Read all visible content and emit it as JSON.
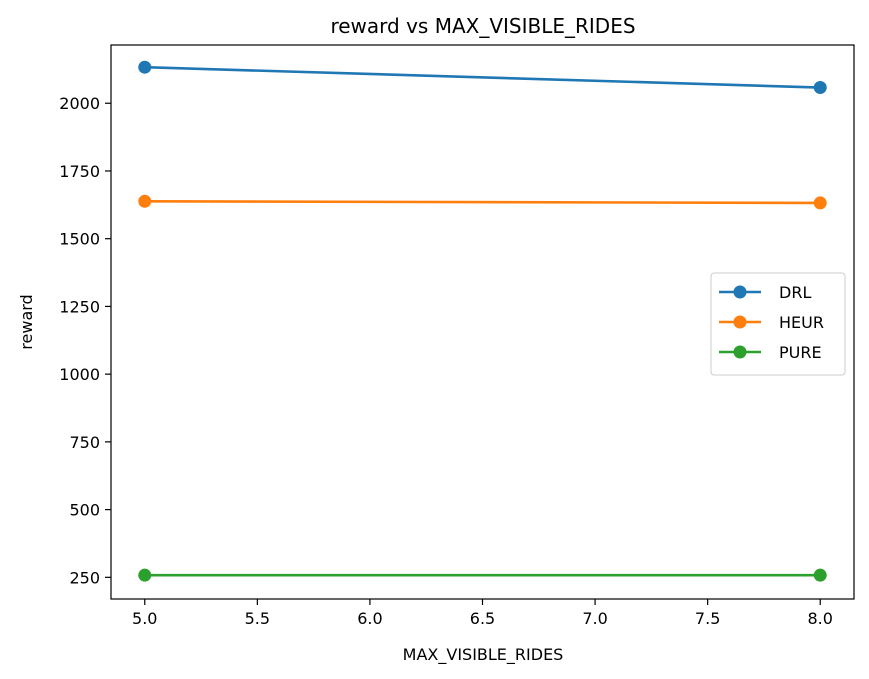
{
  "chart_data": {
    "type": "line",
    "title": "reward vs MAX_VISIBLE_RIDES",
    "xlabel": "MAX_VISIBLE_RIDES",
    "ylabel": "reward",
    "xlim": [
      4.85,
      8.15
    ],
    "ylim": [
      170,
      2215
    ],
    "x_ticks": [
      5.0,
      5.5,
      6.0,
      6.5,
      7.0,
      7.5,
      8.0
    ],
    "x_tick_labels": [
      "5.0",
      "5.5",
      "6.0",
      "6.5",
      "7.0",
      "7.5",
      "8.0"
    ],
    "y_ticks": [
      250,
      500,
      750,
      1000,
      1250,
      1500,
      1750,
      2000
    ],
    "y_tick_labels": [
      "250",
      "500",
      "750",
      "1000",
      "1250",
      "1500",
      "1750",
      "2000"
    ],
    "x": [
      5,
      8
    ],
    "series": [
      {
        "name": "DRL",
        "values": [
          2133,
          2058
        ],
        "color": "#1f77b4"
      },
      {
        "name": "HEUR",
        "values": [
          1638,
          1632
        ],
        "color": "#ff7f0e"
      },
      {
        "name": "PURE",
        "values": [
          258,
          258
        ],
        "color": "#2ca02c"
      }
    ],
    "grid": false,
    "legend_position": "center-right",
    "marker": "circle"
  }
}
